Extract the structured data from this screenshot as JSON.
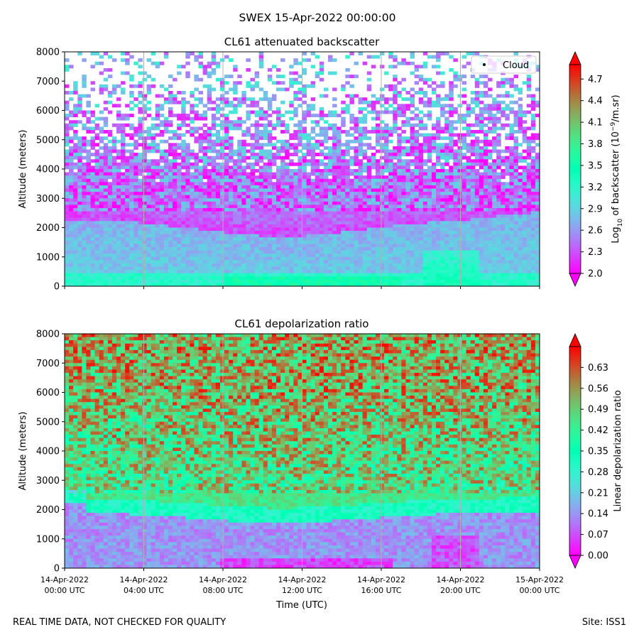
{
  "suptitle": "SWEX 15-Apr-2022 00:00:00",
  "footer_left": "REAL TIME DATA, NOT CHECKED FOR QUALITY",
  "footer_right": "Site: ISS1",
  "chart_data": [
    {
      "type": "heatmap",
      "title": "CL61 attenuated backscatter",
      "ylabel": "Altitude (meters)",
      "ylim": [
        0,
        8000
      ],
      "yticks": [
        0,
        1000,
        2000,
        3000,
        4000,
        5000,
        6000,
        7000,
        8000
      ],
      "colorbar_label": "Log10 of backscatter (10^-9/m.sr)",
      "colorbar_label_base": "Log",
      "colorbar_label_sub": "10",
      "colorbar_label_mid": " of backscatter (10",
      "colorbar_label_sup": "−9",
      "colorbar_label_end": "/m.sr)",
      "colorbar_ticks": [
        2.0,
        2.3,
        2.6,
        2.9,
        3.2,
        3.5,
        3.8,
        4.1,
        4.4,
        4.7
      ],
      "colorbar_tick_labels": [
        "2.0",
        "2.3",
        "2.6",
        "2.9",
        "3.2",
        "3.5",
        "3.8",
        "4.1",
        "4.4",
        "4.7"
      ],
      "colorbar_range": [
        2.0,
        4.9
      ],
      "legend": {
        "label": "Cloud",
        "placement": "top-right"
      },
      "colormap": "rainbow"
    },
    {
      "type": "heatmap",
      "title": "CL61 depolarization ratio",
      "ylabel": "Altitude (meters)",
      "ylim": [
        0,
        8000
      ],
      "yticks": [
        0,
        1000,
        2000,
        3000,
        4000,
        5000,
        6000,
        7000,
        8000
      ],
      "xlabel": "Time (UTC)",
      "xtick_dates": [
        "14-Apr-2022",
        "14-Apr-2022",
        "14-Apr-2022",
        "14-Apr-2022",
        "14-Apr-2022",
        "14-Apr-2022",
        "15-Apr-2022"
      ],
      "xtick_times": [
        "00:00 UTC",
        "04:00 UTC",
        "08:00 UTC",
        "12:00 UTC",
        "16:00 UTC",
        "20:00 UTC",
        "00:00 UTC"
      ],
      "xlim_hours": [
        0,
        24
      ],
      "colorbar_label": "Linear depolarization ratio",
      "colorbar_ticks": [
        0.0,
        0.07,
        0.14,
        0.21,
        0.28,
        0.35,
        0.42,
        0.49,
        0.56,
        0.63
      ],
      "colorbar_tick_labels": [
        "0.00",
        "0.07",
        "0.14",
        "0.21",
        "0.28",
        "0.35",
        "0.42",
        "0.49",
        "0.56",
        "0.63"
      ],
      "colorbar_range": [
        0.0,
        0.7
      ],
      "colormap": "rainbow"
    }
  ]
}
